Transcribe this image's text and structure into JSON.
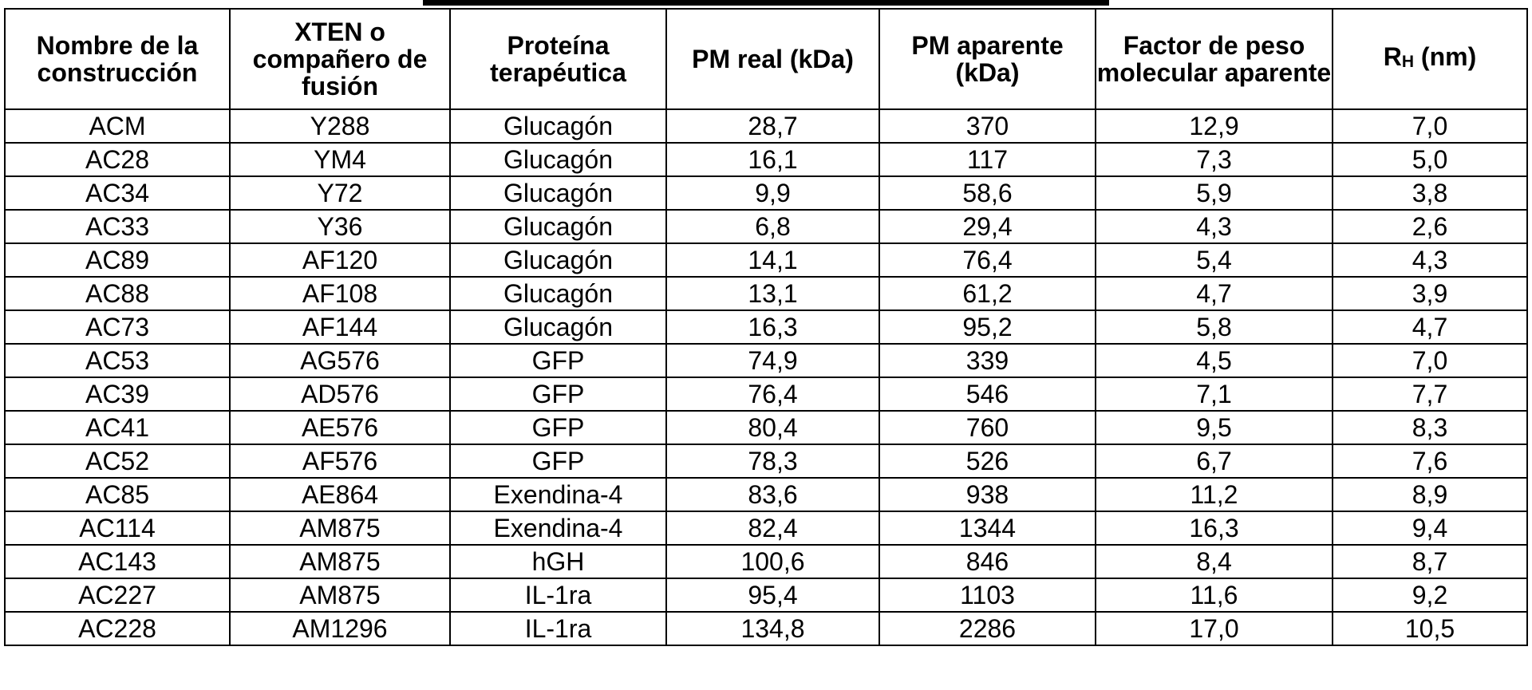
{
  "table": {
    "headers": {
      "c0": "Nombre de la construcción",
      "c1": "XTEN o compañero de fusión",
      "c2": "Proteína terapéutica",
      "c3": "PM real (kDa)",
      "c4": "PM aparente (kDa)",
      "c5": "Factor de peso molecular aparente",
      "c6_main": "R",
      "c6_sub": "H",
      "c6_unit": " (nm)"
    },
    "rows": [
      [
        "ACM",
        "Y288",
        "Glucagón",
        "28,7",
        "370",
        "12,9",
        "7,0"
      ],
      [
        "AC28",
        "YM4",
        "Glucagón",
        "16,1",
        "117",
        "7,3",
        "5,0"
      ],
      [
        "AC34",
        "Y72",
        "Glucagón",
        "9,9",
        "58,6",
        "5,9",
        "3,8"
      ],
      [
        "AC33",
        "Y36",
        "Glucagón",
        "6,8",
        "29,4",
        "4,3",
        "2,6"
      ],
      [
        "AC89",
        "AF120",
        "Glucagón",
        "14,1",
        "76,4",
        "5,4",
        "4,3"
      ],
      [
        "AC88",
        "AF108",
        "Glucagón",
        "13,1",
        "61,2",
        "4,7",
        "3,9"
      ],
      [
        "AC73",
        "AF144",
        "Glucagón",
        "16,3",
        "95,2",
        "5,8",
        "4,7"
      ],
      [
        "AC53",
        "AG576",
        "GFP",
        "74,9",
        "339",
        "4,5",
        "7,0"
      ],
      [
        "AC39",
        "AD576",
        "GFP",
        "76,4",
        "546",
        "7,1",
        "7,7"
      ],
      [
        "AC41",
        "AE576",
        "GFP",
        "80,4",
        "760",
        "9,5",
        "8,3"
      ],
      [
        "AC52",
        "AF576",
        "GFP",
        "78,3",
        "526",
        "6,7",
        "7,6"
      ],
      [
        "AC85",
        "AE864",
        "Exendina-4",
        "83,6",
        "938",
        "11,2",
        "8,9"
      ],
      [
        "AC114",
        "AM875",
        "Exendina-4",
        "82,4",
        "1344",
        "16,3",
        "9,4"
      ],
      [
        "AC143",
        "AM875",
        "hGH",
        "100,6",
        "846",
        "8,4",
        "8,7"
      ],
      [
        "AC227",
        "AM875",
        "IL-1ra",
        "95,4",
        "1103",
        "11,6",
        "9,2"
      ],
      [
        "AC228",
        "AM1296",
        "IL-1ra",
        "134,8",
        "2286",
        "17,0",
        "10,5"
      ]
    ]
  }
}
